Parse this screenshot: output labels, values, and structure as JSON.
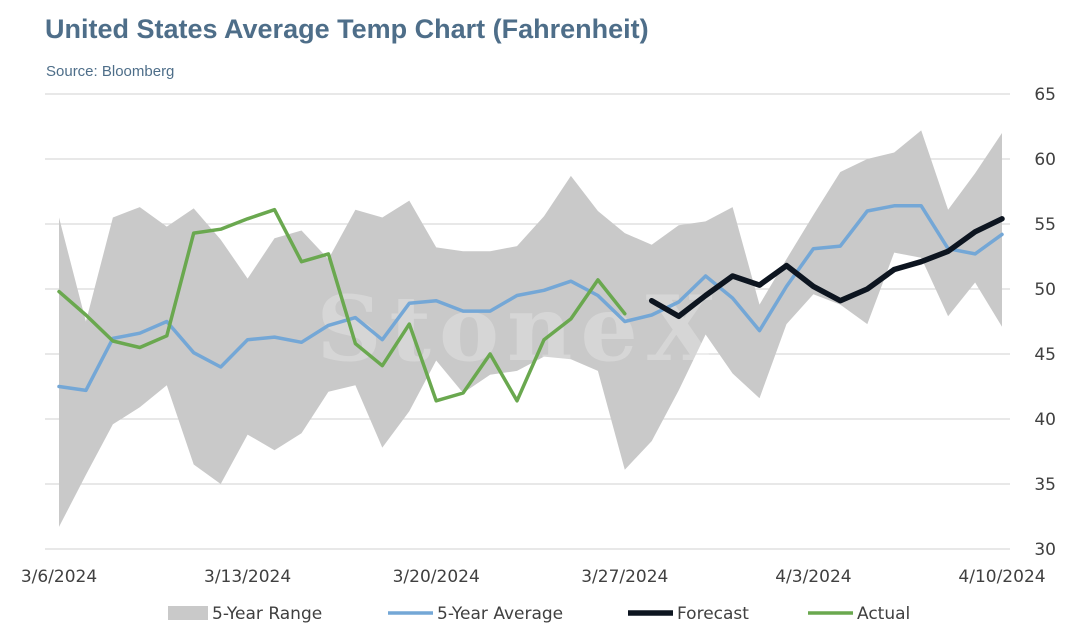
{
  "title": "United States Average Temp Chart (Fahrenheit)",
  "subtitle": "Source: Bloomberg",
  "watermark": "StoneX",
  "chart_data": {
    "type": "line",
    "title": "United States Average Temp Chart (Fahrenheit)",
    "ylim": [
      30,
      65
    ],
    "yticks": [
      30,
      35,
      40,
      45,
      50,
      55,
      60,
      65
    ],
    "y_axis_position": "right",
    "grid": true,
    "legend_position": "bottom",
    "x_dates": [
      "3/6/2024",
      "3/7/2024",
      "3/8/2024",
      "3/9/2024",
      "3/10/2024",
      "3/11/2024",
      "3/12/2024",
      "3/13/2024",
      "3/14/2024",
      "3/15/2024",
      "3/16/2024",
      "3/17/2024",
      "3/18/2024",
      "3/19/2024",
      "3/20/2024",
      "3/21/2024",
      "3/22/2024",
      "3/23/2024",
      "3/24/2024",
      "3/25/2024",
      "3/26/2024",
      "3/27/2024",
      "3/28/2024",
      "3/29/2024",
      "3/30/2024",
      "3/31/2024",
      "4/1/2024",
      "4/2/2024",
      "4/3/2024",
      "4/4/2024",
      "4/5/2024",
      "4/6/2024",
      "4/7/2024",
      "4/8/2024",
      "4/9/2024",
      "4/10/2024"
    ],
    "xtick_labels": [
      "3/6/2024",
      "3/13/2024",
      "3/20/2024",
      "3/27/2024",
      "4/3/2024",
      "4/10/2024"
    ],
    "xtick_indices": [
      0,
      7,
      14,
      21,
      28,
      35
    ],
    "series": [
      {
        "name": "5-Year Range",
        "kind": "band",
        "color": "#c9c9c9",
        "high": [
          55.5,
          47.5,
          55.5,
          56.3,
          54.8,
          56.2,
          53.8,
          50.8,
          53.9,
          54.5,
          52.3,
          56.1,
          55.5,
          56.8,
          53.2,
          52.9,
          52.9,
          53.3,
          55.6,
          58.7,
          56.0,
          54.3,
          53.4,
          54.9,
          55.2,
          56.3,
          48.8,
          52.3,
          55.7,
          59.0,
          60.0,
          60.5,
          62.2,
          56.1,
          58.9,
          62.0
        ],
        "low": [
          31.7,
          35.7,
          39.6,
          40.9,
          42.6,
          36.5,
          35.0,
          38.8,
          37.6,
          38.9,
          42.1,
          42.6,
          37.8,
          40.6,
          44.5,
          42.0,
          43.4,
          43.7,
          44.8,
          44.6,
          43.7,
          36.1,
          38.3,
          42.2,
          46.5,
          43.5,
          41.6,
          47.3,
          49.6,
          48.8,
          47.3,
          52.8,
          52.4,
          47.9,
          50.5,
          47.1
        ]
      },
      {
        "name": "5-Year Average",
        "color": "#74a7d6",
        "values": [
          42.5,
          42.2,
          46.2,
          46.6,
          47.5,
          45.1,
          44.0,
          46.1,
          46.3,
          45.9,
          47.2,
          47.8,
          46.1,
          48.9,
          49.1,
          48.3,
          48.3,
          49.5,
          49.9,
          50.6,
          49.5,
          47.5,
          48.0,
          49.0,
          51.0,
          49.3,
          46.8,
          50.2,
          53.1,
          53.3,
          56.0,
          56.4,
          56.4,
          53.1,
          52.7,
          54.2
        ]
      },
      {
        "name": "Forecast",
        "color": "#0d1520",
        "values": [
          null,
          null,
          null,
          null,
          null,
          null,
          null,
          null,
          null,
          null,
          null,
          null,
          null,
          null,
          null,
          null,
          null,
          null,
          null,
          null,
          null,
          null,
          49.1,
          47.9,
          49.5,
          51.0,
          50.3,
          51.8,
          50.2,
          49.1,
          50.0,
          51.5,
          52.1,
          52.9,
          54.4,
          55.4
        ]
      },
      {
        "name": "Actual",
        "color": "#6aa84f",
        "values": [
          49.8,
          48.0,
          46.0,
          45.5,
          46.4,
          54.3,
          54.6,
          55.4,
          56.1,
          52.1,
          52.7,
          45.8,
          44.1,
          47.3,
          41.4,
          42.0,
          45.0,
          41.4,
          46.1,
          47.7,
          50.7,
          48.1,
          null,
          null,
          null,
          null,
          null,
          null,
          null,
          null,
          null,
          null,
          null,
          null,
          null,
          null
        ]
      }
    ]
  },
  "legend": [
    {
      "label": "5-Year Range",
      "symbol": "band",
      "color": "#c9c9c9"
    },
    {
      "label": "5-Year Average",
      "symbol": "line",
      "color": "#74a7d6"
    },
    {
      "label": "Forecast",
      "symbol": "line",
      "color": "#0d1520"
    },
    {
      "label": "Actual",
      "symbol": "line",
      "color": "#6aa84f"
    }
  ]
}
